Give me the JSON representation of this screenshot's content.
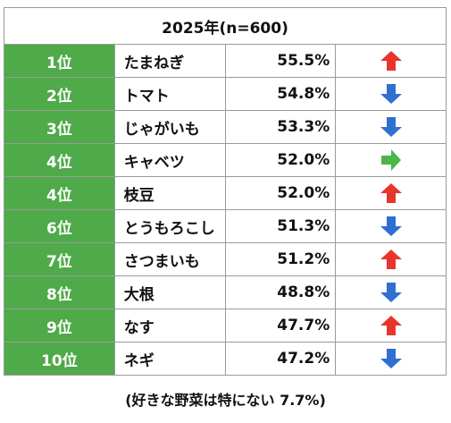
{
  "title": "2025年(n=600)",
  "rows": [
    {
      "rank": "1位",
      "item": "たまねぎ",
      "pct": "55.5%",
      "trend": "up"
    },
    {
      "rank": "2位",
      "item": "トマト",
      "pct": "54.8%",
      "trend": "down"
    },
    {
      "rank": "3位",
      "item": "じゃがいも",
      "pct": "53.3%",
      "trend": "down"
    },
    {
      "rank": "4位",
      "item": "キャベツ",
      "pct": "52.0%",
      "trend": "same"
    },
    {
      "rank": "4位",
      "item": "枝豆",
      "pct": "52.0%",
      "trend": "up"
    },
    {
      "rank": "6位",
      "item": "とうもろこし",
      "pct": "51.3%",
      "trend": "down"
    },
    {
      "rank": "7位",
      "item": "さつまいも",
      "pct": "51.2%",
      "trend": "up"
    },
    {
      "rank": "8位",
      "item": "大根",
      "pct": "48.8%",
      "trend": "down"
    },
    {
      "rank": "9位",
      "item": "なす",
      "pct": "47.7%",
      "trend": "up"
    },
    {
      "rank": "10位",
      "item": "ネギ",
      "pct": "47.2%",
      "trend": "down"
    }
  ],
  "footnote": "(好きな野菜は特にない 7.7%)",
  "colors": {
    "rank_bg": "#4faa49",
    "up": "#e8352b",
    "down": "#2f6fd1",
    "same": "#4cb648"
  }
}
